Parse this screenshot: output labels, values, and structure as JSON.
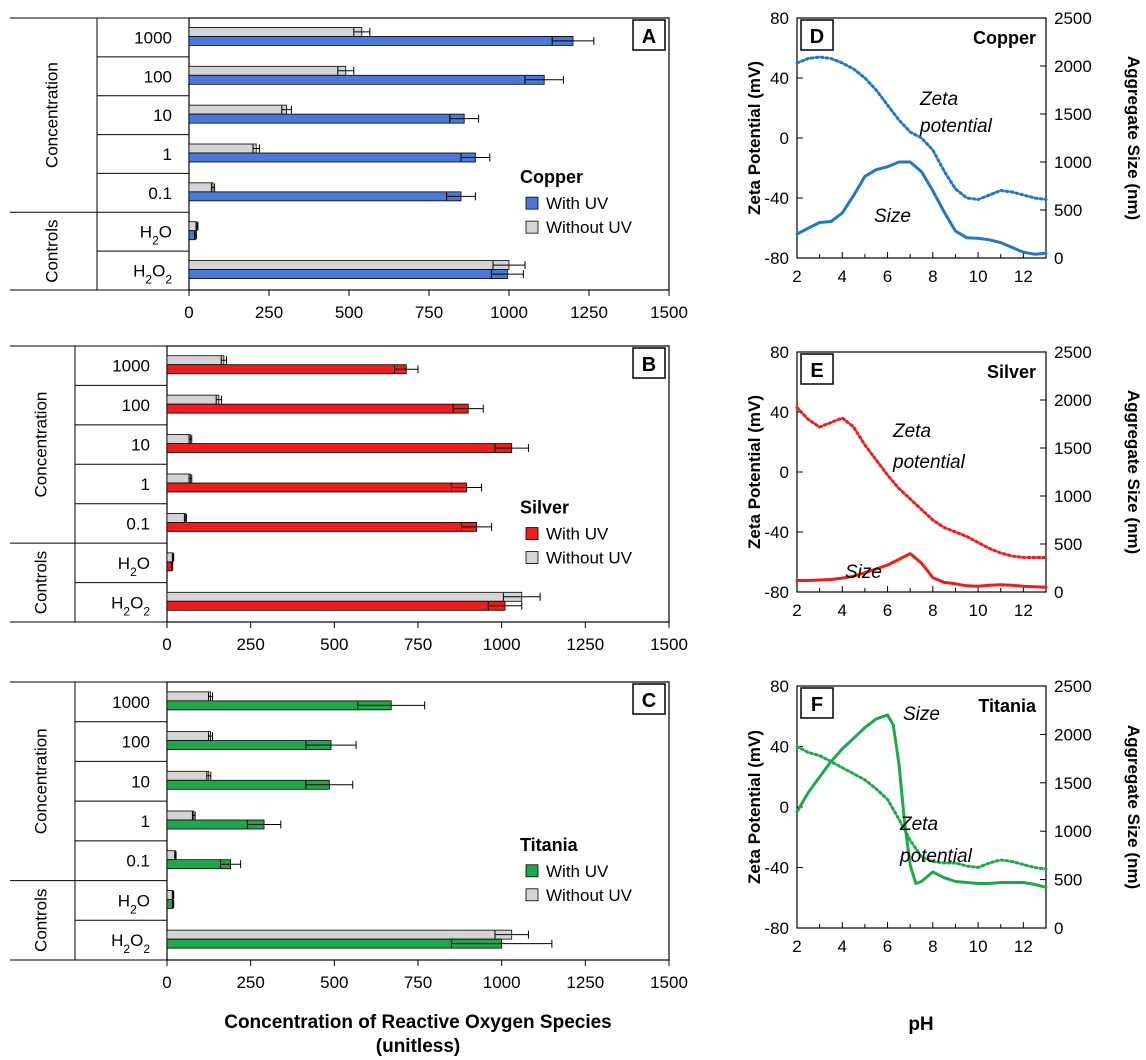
{
  "chart_data": [
    {
      "type": "bar",
      "panel": "A",
      "legend_title": "Copper",
      "categories": [
        "1000",
        "100",
        "10",
        "1",
        "0.1",
        "H2O",
        "H2O2"
      ],
      "groups": [
        {
          "label": "Concentration",
          "count": 5
        },
        {
          "label": "Controls",
          "count": 2
        }
      ],
      "series": [
        {
          "name": "Without UV",
          "color": "#d4d4d4",
          "values": [
            540,
            490,
            305,
            210,
            75,
            25,
            1000
          ],
          "errors": [
            25,
            25,
            15,
            10,
            5,
            3,
            50
          ]
        },
        {
          "name": "With UV",
          "color": "#4a78d8",
          "values": [
            1200,
            1110,
            860,
            895,
            850,
            20,
            995
          ],
          "errors": [
            65,
            60,
            45,
            45,
            45,
            3,
            50
          ]
        }
      ],
      "xlim": [
        0,
        1500
      ],
      "xticks": [
        "0",
        "250",
        "500",
        "750",
        "1000",
        "1250",
        "1500"
      ]
    },
    {
      "type": "bar",
      "panel": "B",
      "legend_title": "Silver",
      "categories": [
        "1000",
        "100",
        "10",
        "1",
        "0.1",
        "H2O",
        "H2O2"
      ],
      "groups": [
        {
          "label": "Concentration",
          "count": 5
        },
        {
          "label": "Controls",
          "count": 2
        }
      ],
      "series": [
        {
          "name": "Without UV",
          "color": "#d4d4d4",
          "values": [
            170,
            155,
            70,
            70,
            55,
            18,
            1060
          ],
          "errors": [
            8,
            8,
            4,
            4,
            3,
            2,
            55
          ]
        },
        {
          "name": "With UV",
          "color": "#ef1c1c",
          "values": [
            715,
            900,
            1030,
            895,
            925,
            15,
            1010
          ],
          "errors": [
            35,
            45,
            50,
            45,
            45,
            2,
            50
          ]
        }
      ],
      "xlim": [
        0,
        1500
      ],
      "xticks": [
        "0",
        "250",
        "500",
        "750",
        "1000",
        "1250",
        "1500"
      ]
    },
    {
      "type": "bar",
      "panel": "C",
      "legend_title": "Titania",
      "categories": [
        "1000",
        "100",
        "10",
        "1",
        "0.1",
        "H2O",
        "H2O2"
      ],
      "groups": [
        {
          "label": "Concentration",
          "count": 5
        },
        {
          "label": "Controls",
          "count": 2
        }
      ],
      "series": [
        {
          "name": "Without UV",
          "color": "#d4d4d4",
          "values": [
            130,
            130,
            125,
            80,
            25,
            18,
            1030
          ],
          "errors": [
            6,
            6,
            6,
            4,
            2,
            2,
            50
          ]
        },
        {
          "name": "With UV",
          "color": "#1ea84b",
          "values": [
            670,
            490,
            485,
            290,
            190,
            18,
            1000
          ],
          "errors": [
            100,
            75,
            70,
            50,
            30,
            2,
            150
          ]
        }
      ],
      "xlim": [
        0,
        1500
      ],
      "xticks": [
        "0",
        "250",
        "500",
        "750",
        "1000",
        "1250",
        "1500"
      ],
      "xlabel": "Concentration of Reactive Oxygen Species",
      "xlabel_unit": "(unitless)"
    },
    {
      "type": "line",
      "panel": "D",
      "title": "Copper",
      "color": "#1f77c6",
      "ylabel_left": "Zeta Potential (mV)",
      "ylabel_right": "Aggregate Size (nm)",
      "xlim": [
        2,
        13
      ],
      "ylim_left": [
        -80,
        80
      ],
      "ylim_right": [
        0,
        2500
      ],
      "xticks": [
        "2",
        "4",
        "6",
        "8",
        "10",
        "12"
      ],
      "yticks_left": [
        "-80",
        "-40",
        "0",
        "40",
        "80"
      ],
      "yticks_right": [
        "0",
        "500",
        "1000",
        "1500",
        "2000",
        "2500"
      ],
      "series": [
        {
          "name": "Zeta potential",
          "axis": "left",
          "style": "dotted",
          "x": [
            2,
            2.5,
            3,
            3.5,
            4,
            4.5,
            5,
            5.5,
            6,
            6.5,
            7,
            7.5,
            8,
            8.5,
            9,
            9.5,
            10,
            10.5,
            11,
            11.5,
            12,
            12.5,
            13
          ],
          "y": [
            50,
            53,
            54,
            53,
            50,
            46,
            40,
            32,
            22,
            12,
            4,
            0,
            -8,
            -22,
            -34,
            -40,
            -41,
            -38,
            -35,
            -36,
            -38,
            -40,
            -41
          ]
        },
        {
          "name": "Size",
          "axis": "right",
          "style": "solid",
          "x": [
            2,
            2.5,
            3,
            3.5,
            4,
            4.5,
            5,
            5.5,
            6,
            6.5,
            7,
            7.5,
            8,
            8.5,
            9,
            9.5,
            10,
            10.5,
            11,
            11.5,
            12,
            12.5,
            13
          ],
          "y": [
            250,
            310,
            370,
            380,
            470,
            650,
            850,
            920,
            950,
            1000,
            1000,
            900,
            700,
            480,
            280,
            210,
            205,
            190,
            160,
            110,
            60,
            40,
            50
          ]
        }
      ],
      "annotations": [
        "Zeta",
        "potential",
        "Size"
      ]
    },
    {
      "type": "line",
      "panel": "E",
      "title": "Silver",
      "color": "#ef1c1c",
      "ylabel_left": "Zeta Potential (mV)",
      "ylabel_right": "Aggregate Size (nm)",
      "xlim": [
        2,
        13
      ],
      "ylim_left": [
        -80,
        80
      ],
      "ylim_right": [
        0,
        2500
      ],
      "xticks": [
        "2",
        "4",
        "6",
        "8",
        "10",
        "12"
      ],
      "yticks_left": [
        "-80",
        "-40",
        "0",
        "40",
        "80"
      ],
      "yticks_right": [
        "0",
        "500",
        "1000",
        "1500",
        "2000",
        "2500"
      ],
      "series": [
        {
          "name": "Zeta potential",
          "axis": "left",
          "style": "dotted",
          "x": [
            2,
            2.5,
            3,
            3.5,
            4,
            4.5,
            5,
            5.5,
            6,
            6.5,
            7,
            7.5,
            8,
            8.5,
            9,
            9.5,
            10,
            10.5,
            11,
            11.5,
            12,
            12.5,
            13
          ],
          "y": [
            43,
            35,
            30,
            33,
            36,
            30,
            18,
            8,
            -2,
            -11,
            -18,
            -25,
            -32,
            -37,
            -40,
            -43,
            -47,
            -51,
            -54,
            -56,
            -57,
            -57,
            -57
          ]
        },
        {
          "name": "Size",
          "axis": "right",
          "style": "solid",
          "x": [
            2,
            2.5,
            3,
            3.5,
            4,
            4.5,
            5,
            5.5,
            6,
            6.5,
            7,
            7.5,
            8,
            8.5,
            9,
            9.5,
            10,
            10.5,
            11,
            11.5,
            12,
            12.5,
            13
          ],
          "y": [
            120,
            120,
            125,
            130,
            145,
            165,
            200,
            240,
            280,
            340,
            400,
            300,
            150,
            100,
            85,
            65,
            60,
            70,
            75,
            70,
            60,
            55,
            50
          ]
        }
      ],
      "annotations": [
        "Zeta",
        "potential",
        "Size"
      ]
    },
    {
      "type": "line",
      "panel": "F",
      "title": "Titania",
      "color": "#1ea84b",
      "ylabel_left": "Zeta Potential (mV)",
      "ylabel_right": "Aggregate Size (nm)",
      "xlim": [
        2,
        13
      ],
      "ylim_left": [
        -80,
        80
      ],
      "ylim_right": [
        0,
        2500
      ],
      "xticks": [
        "2",
        "4",
        "6",
        "8",
        "10",
        "12"
      ],
      "yticks_left": [
        "-80",
        "-40",
        "0",
        "40",
        "80"
      ],
      "yticks_right": [
        "0",
        "500",
        "1000",
        "1500",
        "2000",
        "2500"
      ],
      "series": [
        {
          "name": "Zeta potential",
          "axis": "left",
          "style": "dotted",
          "x": [
            2,
            2.5,
            3,
            3.5,
            4,
            4.5,
            5,
            5.5,
            6,
            6.5,
            7,
            7.5,
            8,
            8.5,
            9,
            9.5,
            10,
            10.5,
            11,
            11.5,
            12,
            12.5,
            13
          ],
          "y": [
            40,
            36,
            34,
            30,
            26,
            22,
            18,
            12,
            5,
            -8,
            -22,
            -33,
            -36,
            -37,
            -37,
            -39,
            -40,
            -37,
            -35,
            -36,
            -38,
            -40,
            -41
          ]
        },
        {
          "name": "Size",
          "axis": "right",
          "style": "solid",
          "x": [
            2,
            2.5,
            3,
            3.5,
            4,
            4.5,
            5,
            5.5,
            6,
            6.25,
            6.5,
            6.75,
            7,
            7.25,
            7.5,
            8,
            8.5,
            9,
            9.5,
            10,
            10.5,
            11,
            11.5,
            12,
            12.5,
            13
          ],
          "y": [
            1200,
            1400,
            1560,
            1720,
            1850,
            1960,
            2070,
            2160,
            2200,
            2100,
            1700,
            1100,
            650,
            460,
            480,
            580,
            520,
            480,
            470,
            460,
            460,
            470,
            470,
            470,
            450,
            420
          ]
        }
      ],
      "annotations": [
        "Zeta",
        "potential",
        "Size"
      ]
    }
  ]
}
